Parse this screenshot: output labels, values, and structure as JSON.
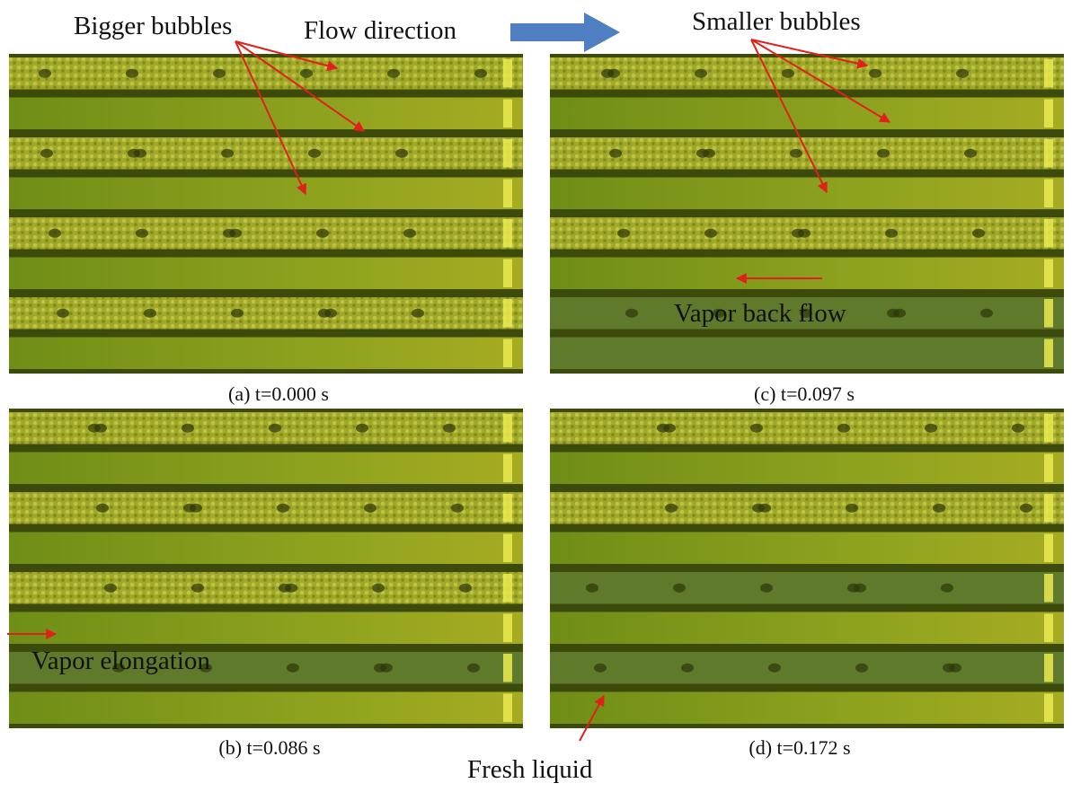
{
  "figure": {
    "annotations": {
      "bigger_bubbles": "Bigger bubbles",
      "flow_direction": "Flow direction",
      "smaller_bubbles": "Smaller bubbles",
      "vapor_back_flow": "Vapor back flow",
      "vapor_elongation": "Vapor elongation",
      "fresh_liquid": "Fresh liquid"
    },
    "panels": [
      {
        "caption": "(a) t=0.000 s"
      },
      {
        "caption": "(c) t=0.097 s"
      },
      {
        "caption": "(b) t=0.086 s"
      },
      {
        "caption": "(d) t=0.172 s"
      }
    ]
  }
}
